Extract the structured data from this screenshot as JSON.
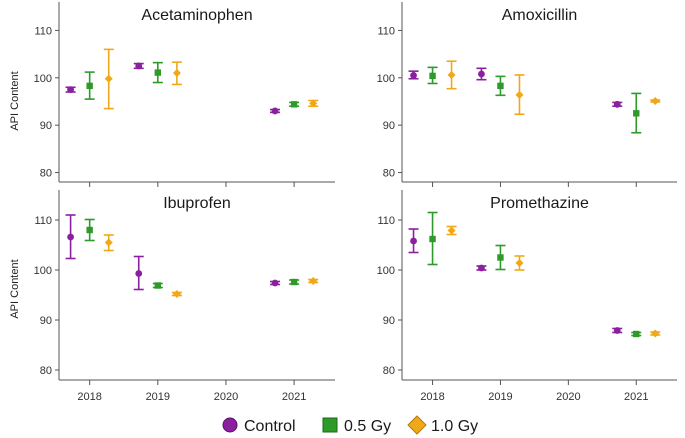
{
  "chart_data": {
    "type": "scatter",
    "ylabel": "API Content",
    "ylim": [
      78,
      116
    ],
    "y_ticks": [
      80,
      90,
      100,
      110
    ],
    "x_ticks": [
      2018,
      2019,
      2020,
      2021
    ],
    "legend_position": "bottom",
    "series": [
      {
        "name": "Control",
        "color": "#8a1fa0",
        "marker": "circle"
      },
      {
        "name": "0.5 Gy",
        "color": "#2e9a2a",
        "marker": "square"
      },
      {
        "name": "1.0 Gy",
        "color": "#f0a818",
        "marker": "diamond"
      }
    ],
    "panels": [
      {
        "title": "Acetaminophen",
        "points": [
          {
            "series": "Control",
            "year": 2018,
            "mean": 97.5,
            "low": 97.0,
            "high": 98.0
          },
          {
            "series": "0.5 Gy",
            "year": 2018,
            "mean": 98.3,
            "low": 95.5,
            "high": 101.2
          },
          {
            "series": "1.0 Gy",
            "year": 2018,
            "mean": 99.8,
            "low": 93.5,
            "high": 106.0
          },
          {
            "series": "Control",
            "year": 2019,
            "mean": 102.5,
            "low": 102.0,
            "high": 103.0
          },
          {
            "series": "0.5 Gy",
            "year": 2019,
            "mean": 101.1,
            "low": 99.0,
            "high": 103.2
          },
          {
            "series": "1.0 Gy",
            "year": 2019,
            "mean": 101.0,
            "low": 98.6,
            "high": 103.3
          },
          {
            "series": "Control",
            "year": 2021,
            "mean": 93.0,
            "low": 92.7,
            "high": 93.3
          },
          {
            "series": "0.5 Gy",
            "year": 2021,
            "mean": 94.4,
            "low": 94.0,
            "high": 94.8
          },
          {
            "series": "1.0 Gy",
            "year": 2021,
            "mean": 94.6,
            "low": 94.0,
            "high": 95.2
          }
        ]
      },
      {
        "title": "Amoxicillin",
        "points": [
          {
            "series": "Control",
            "year": 2018,
            "mean": 100.5,
            "low": 99.8,
            "high": 101.4
          },
          {
            "series": "0.5 Gy",
            "year": 2018,
            "mean": 100.4,
            "low": 98.8,
            "high": 102.2
          },
          {
            "series": "1.0 Gy",
            "year": 2018,
            "mean": 100.6,
            "low": 97.7,
            "high": 103.5
          },
          {
            "series": "Control",
            "year": 2019,
            "mean": 100.8,
            "low": 99.6,
            "high": 102.0
          },
          {
            "series": "0.5 Gy",
            "year": 2019,
            "mean": 98.3,
            "low": 96.3,
            "high": 100.3
          },
          {
            "series": "1.0 Gy",
            "year": 2019,
            "mean": 96.4,
            "low": 92.3,
            "high": 100.6
          },
          {
            "series": "Control",
            "year": 2021,
            "mean": 94.4,
            "low": 94.0,
            "high": 94.8
          },
          {
            "series": "0.5 Gy",
            "year": 2021,
            "mean": 92.5,
            "low": 88.4,
            "high": 96.7
          },
          {
            "series": "1.0 Gy",
            "year": 2021,
            "mean": 95.1,
            "low": 94.9,
            "high": 95.3
          }
        ]
      },
      {
        "title": "Ibuprofen",
        "points": [
          {
            "series": "Control",
            "year": 2018,
            "mean": 106.6,
            "low": 102.3,
            "high": 111.0
          },
          {
            "series": "0.5 Gy",
            "year": 2018,
            "mean": 108.0,
            "low": 105.9,
            "high": 110.1
          },
          {
            "series": "1.0 Gy",
            "year": 2018,
            "mean": 105.5,
            "low": 103.9,
            "high": 107.0
          },
          {
            "series": "Control",
            "year": 2019,
            "mean": 99.3,
            "low": 96.1,
            "high": 102.7
          },
          {
            "series": "0.5 Gy",
            "year": 2019,
            "mean": 96.9,
            "low": 96.5,
            "high": 97.3
          },
          {
            "series": "1.0 Gy",
            "year": 2019,
            "mean": 95.2,
            "low": 94.9,
            "high": 95.5
          },
          {
            "series": "Control",
            "year": 2021,
            "mean": 97.4,
            "low": 97.1,
            "high": 97.7
          },
          {
            "series": "0.5 Gy",
            "year": 2021,
            "mean": 97.6,
            "low": 97.2,
            "high": 98.0
          },
          {
            "series": "1.0 Gy",
            "year": 2021,
            "mean": 97.8,
            "low": 97.5,
            "high": 98.1
          }
        ]
      },
      {
        "title": "Promethazine",
        "points": [
          {
            "series": "Control",
            "year": 2018,
            "mean": 105.8,
            "low": 103.5,
            "high": 108.2
          },
          {
            "series": "0.5 Gy",
            "year": 2018,
            "mean": 106.2,
            "low": 101.1,
            "high": 111.5
          },
          {
            "series": "1.0 Gy",
            "year": 2018,
            "mean": 107.9,
            "low": 107.1,
            "high": 108.7
          },
          {
            "series": "Control",
            "year": 2019,
            "mean": 100.4,
            "low": 100.0,
            "high": 100.8
          },
          {
            "series": "0.5 Gy",
            "year": 2019,
            "mean": 102.5,
            "low": 100.1,
            "high": 104.9
          },
          {
            "series": "1.0 Gy",
            "year": 2019,
            "mean": 101.4,
            "low": 100.0,
            "high": 102.8
          },
          {
            "series": "Control",
            "year": 2021,
            "mean": 87.9,
            "low": 87.5,
            "high": 88.3
          },
          {
            "series": "0.5 Gy",
            "year": 2021,
            "mean": 87.2,
            "low": 86.9,
            "high": 87.5
          },
          {
            "series": "1.0 Gy",
            "year": 2021,
            "mean": 87.3,
            "low": 87.0,
            "high": 87.6
          }
        ]
      }
    ]
  }
}
